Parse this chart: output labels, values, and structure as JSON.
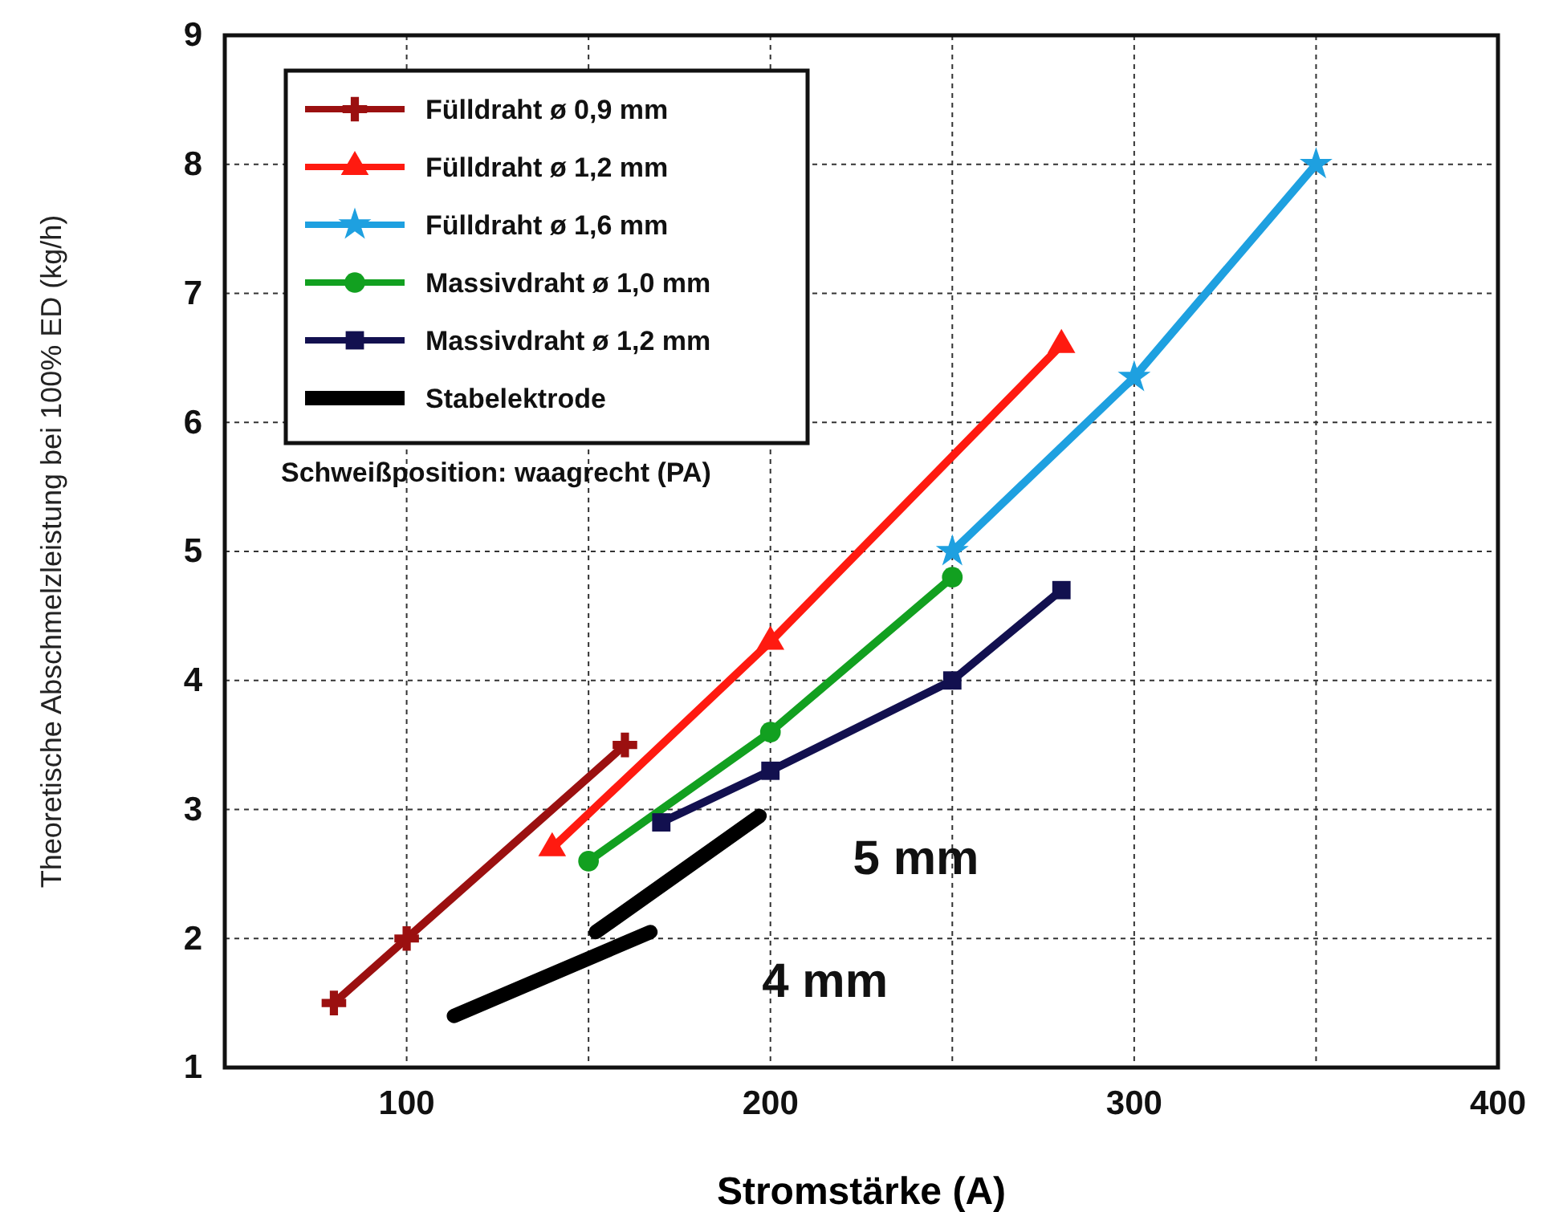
{
  "chart_data": {
    "type": "line",
    "xlabel": "Stromstärke (A)",
    "ylabel": "Theoretische Abschmelzleistung bei 100% ED (kg/h)",
    "xlim": [
      50,
      400
    ],
    "xticks": [
      {
        "value": 100,
        "label": "100"
      },
      {
        "value": 150,
        "label": null
      },
      {
        "value": 200,
        "label": "200"
      },
      {
        "value": 250,
        "label": null
      },
      {
        "value": 300,
        "label": "300"
      },
      {
        "value": 350,
        "label": null
      },
      {
        "value": 400,
        "label": "400"
      }
    ],
    "ylim": [
      1,
      9
    ],
    "yticks": [
      1,
      2,
      3,
      4,
      5,
      6,
      7,
      8,
      9
    ],
    "grid": true,
    "legend": "top left",
    "series": [
      {
        "name": "Fülldraht ø 0,9 mm",
        "color": "#9b1010",
        "marker": "cross",
        "x": [
          80,
          100,
          160
        ],
        "values": [
          1.5,
          2.0,
          3.5
        ]
      },
      {
        "name": "Fülldraht ø 1,2 mm",
        "color": "#ff1a10",
        "marker": "triangle",
        "x": [
          140,
          200,
          280
        ],
        "values": [
          2.7,
          4.3,
          6.6
        ]
      },
      {
        "name": "Fülldraht ø 1,6 mm",
        "color": "#1ea0e0",
        "marker": "star",
        "x": [
          250,
          300,
          350
        ],
        "values": [
          5.0,
          6.35,
          8.0
        ]
      },
      {
        "name": "Massivdraht ø 1,0 mm",
        "color": "#12a020",
        "marker": "circle",
        "x": [
          150,
          200,
          250
        ],
        "values": [
          2.6,
          3.6,
          4.8
        ]
      },
      {
        "name": "Massivdraht ø 1,2 mm",
        "color": "#12104f",
        "marker": "square",
        "x": [
          170,
          200,
          250,
          280
        ],
        "values": [
          2.9,
          3.3,
          4.0,
          4.7
        ]
      },
      {
        "name": "Stabelektrode",
        "color": "#000000",
        "marker": "none",
        "x": [
          113,
          167
        ],
        "values": [
          1.4,
          2.05
        ]
      },
      {
        "color": "#000000",
        "marker": "none",
        "x": [
          152,
          197
        ],
        "values": [
          2.05,
          2.95
        ]
      }
    ],
    "annotations": [
      "Schweißposition: waagrecht (PA)",
      "5 mm",
      "4 mm"
    ]
  }
}
